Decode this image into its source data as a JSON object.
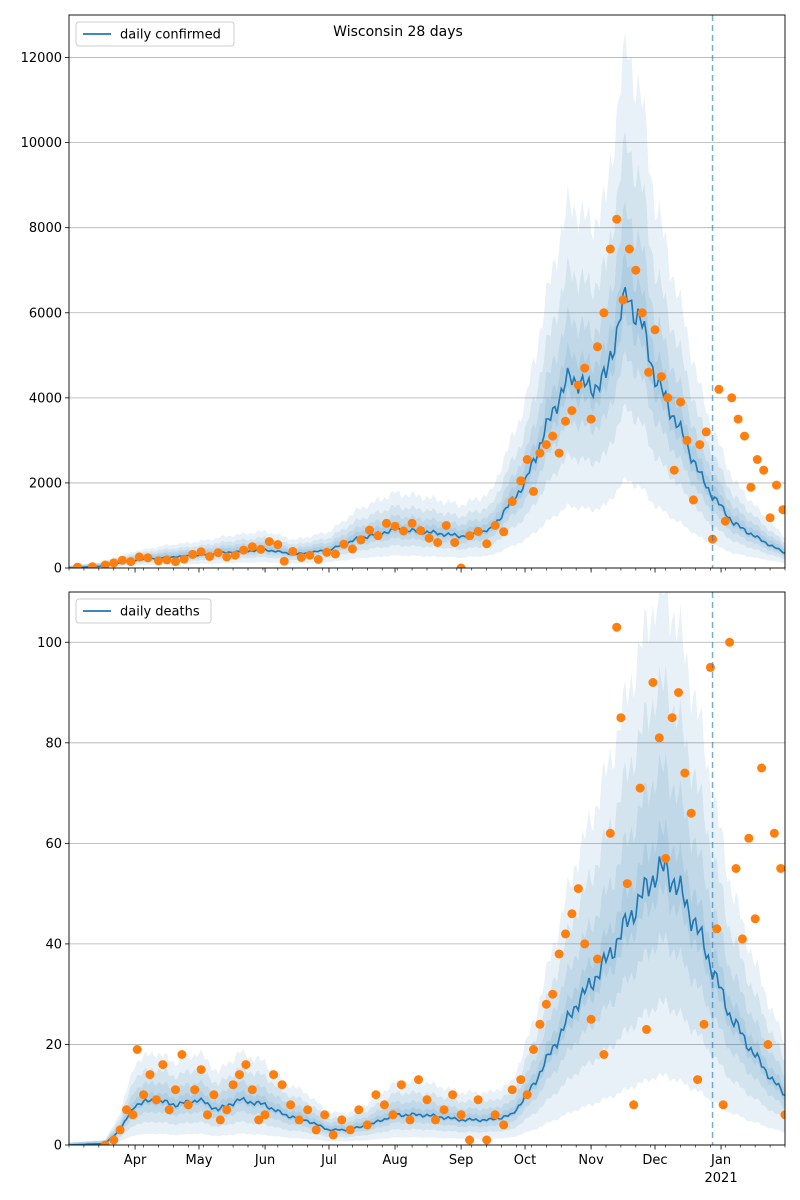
{
  "figure": {
    "title": "Wisconsin 28 days"
  },
  "chart_data": [
    {
      "type": "line",
      "panel": "top",
      "legend_label": "daily confirmed",
      "legend_position": "upper-left",
      "grid": "horizontal",
      "xlim": [
        "2020-03-01",
        "2021-01-31"
      ],
      "ylim": [
        0,
        13000
      ],
      "y_ticks": [
        0,
        2000,
        4000,
        6000,
        8000,
        10000,
        12000
      ],
      "x_tick_labels": [],
      "forecast_start": "2020-12-28",
      "colors": {
        "line": "#1f77b4",
        "band": "#1f77b4",
        "points": "#ff7f0e",
        "forecast_line": "#1f77b4"
      },
      "model_knots": [
        [
          "2020-03-01",
          0
        ],
        [
          "2020-03-15",
          40
        ],
        [
          "2020-04-01",
          180
        ],
        [
          "2020-04-15",
          250
        ],
        [
          "2020-05-01",
          300
        ],
        [
          "2020-05-15",
          370
        ],
        [
          "2020-06-01",
          430
        ],
        [
          "2020-06-15",
          320
        ],
        [
          "2020-07-01",
          420
        ],
        [
          "2020-07-15",
          700
        ],
        [
          "2020-08-01",
          900
        ],
        [
          "2020-08-15",
          850
        ],
        [
          "2020-09-01",
          750
        ],
        [
          "2020-09-15",
          900
        ],
        [
          "2020-10-01",
          2000
        ],
        [
          "2020-10-15",
          3800
        ],
        [
          "2020-10-22",
          4500
        ],
        [
          "2020-11-01",
          4200
        ],
        [
          "2020-11-08",
          4500
        ],
        [
          "2020-11-15",
          6000
        ],
        [
          "2020-11-18",
          6400
        ],
        [
          "2020-11-25",
          5700
        ],
        [
          "2020-12-01",
          4500
        ],
        [
          "2020-12-15",
          3000
        ],
        [
          "2020-12-22",
          2200
        ],
        [
          "2020-12-28",
          1700
        ],
        [
          "2021-01-07",
          1050
        ],
        [
          "2021-01-20",
          650
        ],
        [
          "2021-01-31",
          350
        ]
      ],
      "bands": [
        {
          "level": 0.5,
          "rel_halfwidth": 0.12
        },
        {
          "level": 0.8,
          "rel_halfwidth": 0.3
        },
        {
          "level": 0.95,
          "rel_halfwidth": 0.55
        },
        {
          "level": 0.99,
          "rel_halfwidth": 0.9
        }
      ],
      "observations": [
        [
          "2020-03-05",
          20
        ],
        [
          "2020-03-12",
          30
        ],
        [
          "2020-03-18",
          70
        ],
        [
          "2020-03-22",
          120
        ],
        [
          "2020-03-26",
          180
        ],
        [
          "2020-03-30",
          150
        ],
        [
          "2020-04-03",
          260
        ],
        [
          "2020-04-07",
          240
        ],
        [
          "2020-04-12",
          170
        ],
        [
          "2020-04-16",
          190
        ],
        [
          "2020-04-20",
          150
        ],
        [
          "2020-04-24",
          210
        ],
        [
          "2020-04-28",
          320
        ],
        [
          "2020-05-02",
          380
        ],
        [
          "2020-05-06",
          270
        ],
        [
          "2020-05-10",
          360
        ],
        [
          "2020-05-14",
          260
        ],
        [
          "2020-05-18",
          300
        ],
        [
          "2020-05-22",
          420
        ],
        [
          "2020-05-26",
          500
        ],
        [
          "2020-05-30",
          440
        ],
        [
          "2020-06-03",
          620
        ],
        [
          "2020-06-07",
          550
        ],
        [
          "2020-06-10",
          160
        ],
        [
          "2020-06-14",
          390
        ],
        [
          "2020-06-18",
          250
        ],
        [
          "2020-06-22",
          300
        ],
        [
          "2020-06-26",
          200
        ],
        [
          "2020-06-30",
          370
        ],
        [
          "2020-07-04",
          330
        ],
        [
          "2020-07-08",
          560
        ],
        [
          "2020-07-12",
          450
        ],
        [
          "2020-07-16",
          660
        ],
        [
          "2020-07-20",
          890
        ],
        [
          "2020-07-24",
          760
        ],
        [
          "2020-07-28",
          1050
        ],
        [
          "2020-08-01",
          980
        ],
        [
          "2020-08-05",
          870
        ],
        [
          "2020-08-09",
          1050
        ],
        [
          "2020-08-13",
          880
        ],
        [
          "2020-08-17",
          700
        ],
        [
          "2020-08-21",
          600
        ],
        [
          "2020-08-25",
          1000
        ],
        [
          "2020-08-29",
          600
        ],
        [
          "2020-09-01",
          0
        ],
        [
          "2020-09-05",
          760
        ],
        [
          "2020-09-09",
          860
        ],
        [
          "2020-09-13",
          570
        ],
        [
          "2020-09-17",
          1000
        ],
        [
          "2020-09-21",
          850
        ],
        [
          "2020-09-25",
          1560
        ],
        [
          "2020-09-29",
          2050
        ],
        [
          "2020-10-02",
          2550
        ],
        [
          "2020-10-05",
          1800
        ],
        [
          "2020-10-08",
          2700
        ],
        [
          "2020-10-11",
          2900
        ],
        [
          "2020-10-14",
          3100
        ],
        [
          "2020-10-17",
          2700
        ],
        [
          "2020-10-20",
          3450
        ],
        [
          "2020-10-23",
          3700
        ],
        [
          "2020-10-26",
          4300
        ],
        [
          "2020-10-29",
          4700
        ],
        [
          "2020-11-01",
          3500
        ],
        [
          "2020-11-04",
          5200
        ],
        [
          "2020-11-07",
          6000
        ],
        [
          "2020-11-10",
          7500
        ],
        [
          "2020-11-13",
          8200
        ],
        [
          "2020-11-16",
          6300
        ],
        [
          "2020-11-19",
          7500
        ],
        [
          "2020-11-22",
          7000
        ],
        [
          "2020-11-25",
          6000
        ],
        [
          "2020-11-28",
          4600
        ],
        [
          "2020-12-01",
          5600
        ],
        [
          "2020-12-04",
          4500
        ],
        [
          "2020-12-07",
          4000
        ],
        [
          "2020-12-10",
          2300
        ],
        [
          "2020-12-13",
          3900
        ],
        [
          "2020-12-16",
          3000
        ],
        [
          "2020-12-19",
          1600
        ],
        [
          "2020-12-22",
          2900
        ],
        [
          "2020-12-25",
          3200
        ],
        [
          "2020-12-28",
          680
        ],
        [
          "2020-12-31",
          4200
        ],
        [
          "2021-01-03",
          1100
        ],
        [
          "2021-01-06",
          4000
        ],
        [
          "2021-01-09",
          3500
        ],
        [
          "2021-01-12",
          3100
        ],
        [
          "2021-01-15",
          1900
        ],
        [
          "2021-01-18",
          2550
        ],
        [
          "2021-01-21",
          2300
        ],
        [
          "2021-01-24",
          1180
        ],
        [
          "2021-01-27",
          1950
        ],
        [
          "2021-01-30",
          1370
        ]
      ]
    },
    {
      "type": "line",
      "panel": "bottom",
      "legend_label": "daily deaths",
      "legend_position": "upper-left",
      "grid": "horizontal",
      "xlim": [
        "2020-03-01",
        "2021-01-31"
      ],
      "ylim": [
        0,
        110
      ],
      "y_ticks": [
        0,
        20,
        40,
        60,
        80,
        100
      ],
      "x_tick_labels": [
        "Apr",
        "May",
        "Jun",
        "Jul",
        "Aug",
        "Sep",
        "Oct",
        "Nov",
        "Dec",
        "Jan"
      ],
      "x_year_label": "2021",
      "forecast_start": "2020-12-28",
      "colors": {
        "line": "#1f77b4",
        "band": "#1f77b4",
        "points": "#ff7f0e",
        "forecast_line": "#1f77b4"
      },
      "model_knots": [
        [
          "2020-03-01",
          0
        ],
        [
          "2020-03-18",
          0.3
        ],
        [
          "2020-03-25",
          3
        ],
        [
          "2020-04-01",
          8
        ],
        [
          "2020-04-10",
          9
        ],
        [
          "2020-04-20",
          8
        ],
        [
          "2020-05-01",
          9
        ],
        [
          "2020-05-10",
          7
        ],
        [
          "2020-05-20",
          9
        ],
        [
          "2020-06-01",
          8
        ],
        [
          "2020-06-10",
          6
        ],
        [
          "2020-06-20",
          5
        ],
        [
          "2020-07-01",
          3
        ],
        [
          "2020-07-10",
          3
        ],
        [
          "2020-07-20",
          4
        ],
        [
          "2020-08-01",
          6
        ],
        [
          "2020-08-15",
          6
        ],
        [
          "2020-09-01",
          5
        ],
        [
          "2020-09-15",
          5
        ],
        [
          "2020-09-25",
          6
        ],
        [
          "2020-10-05",
          12
        ],
        [
          "2020-10-15",
          20
        ],
        [
          "2020-10-25",
          28
        ],
        [
          "2020-11-01",
          32
        ],
        [
          "2020-11-10",
          38
        ],
        [
          "2020-11-20",
          46
        ],
        [
          "2020-12-01",
          54
        ],
        [
          "2020-12-06",
          55
        ],
        [
          "2020-12-12",
          51
        ],
        [
          "2020-12-20",
          44
        ],
        [
          "2020-12-28",
          35
        ],
        [
          "2021-01-05",
          26
        ],
        [
          "2021-01-15",
          19
        ],
        [
          "2021-01-25",
          13
        ],
        [
          "2021-01-31",
          10
        ]
      ],
      "bands": [
        {
          "level": 0.5,
          "rel_halfwidth": 0.12
        },
        {
          "level": 0.8,
          "rel_halfwidth": 0.35
        },
        {
          "level": 0.95,
          "rel_halfwidth": 0.65
        },
        {
          "level": 0.99,
          "rel_halfwidth": 1.0
        }
      ],
      "observations": [
        [
          "2020-03-18",
          0
        ],
        [
          "2020-03-22",
          1
        ],
        [
          "2020-03-25",
          3
        ],
        [
          "2020-03-28",
          7
        ],
        [
          "2020-03-31",
          6
        ],
        [
          "2020-04-02",
          19
        ],
        [
          "2020-04-05",
          10
        ],
        [
          "2020-04-08",
          14
        ],
        [
          "2020-04-11",
          9
        ],
        [
          "2020-04-14",
          16
        ],
        [
          "2020-04-17",
          7
        ],
        [
          "2020-04-20",
          11
        ],
        [
          "2020-04-23",
          18
        ],
        [
          "2020-04-26",
          8
        ],
        [
          "2020-04-29",
          11
        ],
        [
          "2020-05-02",
          15
        ],
        [
          "2020-05-05",
          6
        ],
        [
          "2020-05-08",
          10
        ],
        [
          "2020-05-11",
          5
        ],
        [
          "2020-05-14",
          7
        ],
        [
          "2020-05-17",
          12
        ],
        [
          "2020-05-20",
          14
        ],
        [
          "2020-05-23",
          16
        ],
        [
          "2020-05-26",
          11
        ],
        [
          "2020-05-29",
          5
        ],
        [
          "2020-06-01",
          6
        ],
        [
          "2020-06-05",
          14
        ],
        [
          "2020-06-09",
          12
        ],
        [
          "2020-06-13",
          8
        ],
        [
          "2020-06-17",
          5
        ],
        [
          "2020-06-21",
          7
        ],
        [
          "2020-06-25",
          3
        ],
        [
          "2020-06-29",
          6
        ],
        [
          "2020-07-03",
          2
        ],
        [
          "2020-07-07",
          5
        ],
        [
          "2020-07-11",
          3
        ],
        [
          "2020-07-15",
          7
        ],
        [
          "2020-07-19",
          4
        ],
        [
          "2020-07-23",
          10
        ],
        [
          "2020-07-27",
          8
        ],
        [
          "2020-07-31",
          6
        ],
        [
          "2020-08-04",
          12
        ],
        [
          "2020-08-08",
          5
        ],
        [
          "2020-08-12",
          13
        ],
        [
          "2020-08-16",
          9
        ],
        [
          "2020-08-20",
          5
        ],
        [
          "2020-08-24",
          7
        ],
        [
          "2020-08-28",
          10
        ],
        [
          "2020-09-01",
          6
        ],
        [
          "2020-09-05",
          1
        ],
        [
          "2020-09-09",
          9
        ],
        [
          "2020-09-13",
          1
        ],
        [
          "2020-09-17",
          6
        ],
        [
          "2020-09-21",
          4
        ],
        [
          "2020-09-25",
          11
        ],
        [
          "2020-09-29",
          13
        ],
        [
          "2020-10-02",
          10
        ],
        [
          "2020-10-05",
          19
        ],
        [
          "2020-10-08",
          24
        ],
        [
          "2020-10-11",
          28
        ],
        [
          "2020-10-14",
          30
        ],
        [
          "2020-10-17",
          38
        ],
        [
          "2020-10-20",
          42
        ],
        [
          "2020-10-23",
          46
        ],
        [
          "2020-10-26",
          51
        ],
        [
          "2020-10-29",
          40
        ],
        [
          "2020-11-01",
          25
        ],
        [
          "2020-11-04",
          37
        ],
        [
          "2020-11-07",
          18
        ],
        [
          "2020-11-10",
          62
        ],
        [
          "2020-11-13",
          103
        ],
        [
          "2020-11-15",
          85
        ],
        [
          "2020-11-18",
          52
        ],
        [
          "2020-11-21",
          8
        ],
        [
          "2020-11-24",
          71
        ],
        [
          "2020-11-27",
          23
        ],
        [
          "2020-11-30",
          92
        ],
        [
          "2020-12-03",
          81
        ],
        [
          "2020-12-06",
          57
        ],
        [
          "2020-12-09",
          85
        ],
        [
          "2020-12-12",
          90
        ],
        [
          "2020-12-15",
          74
        ],
        [
          "2020-12-18",
          66
        ],
        [
          "2020-12-21",
          13
        ],
        [
          "2020-12-24",
          24
        ],
        [
          "2020-12-27",
          95
        ],
        [
          "2020-12-30",
          43
        ],
        [
          "2021-01-02",
          8
        ],
        [
          "2021-01-05",
          100
        ],
        [
          "2021-01-08",
          55
        ],
        [
          "2021-01-11",
          41
        ],
        [
          "2021-01-14",
          61
        ],
        [
          "2021-01-17",
          45
        ],
        [
          "2021-01-20",
          75
        ],
        [
          "2021-01-23",
          20
        ],
        [
          "2021-01-26",
          62
        ],
        [
          "2021-01-29",
          55
        ],
        [
          "2021-01-31",
          6
        ]
      ]
    }
  ]
}
